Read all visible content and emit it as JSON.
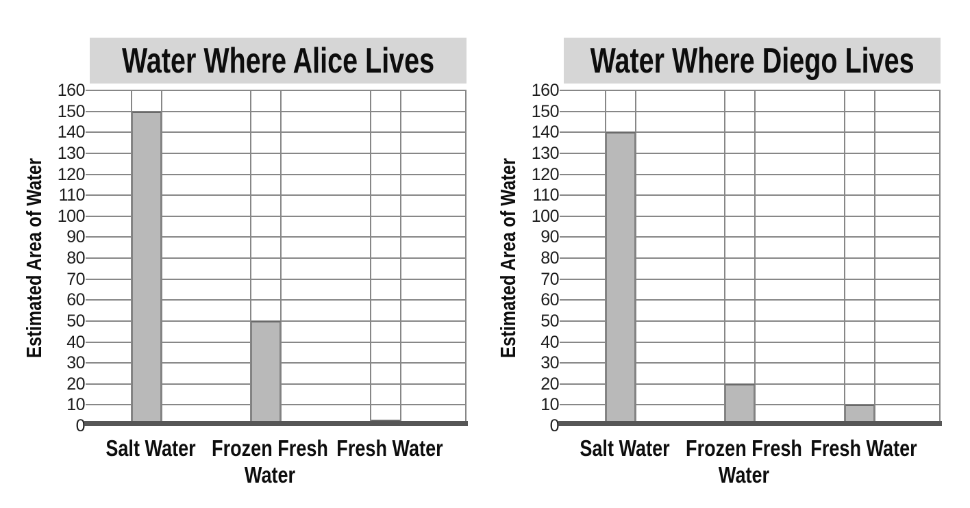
{
  "page": {
    "background": "#ffffff",
    "description_colors": {
      "banner_bg": "#d6d6d6",
      "bar_fill": "#b9b9b9",
      "bar_border": "#828282",
      "gridline": "#878787",
      "baseline": "#565656",
      "text": "#0d0d0d"
    }
  },
  "chart_data": [
    {
      "type": "bar",
      "title": "Water Where Alice Lives",
      "ylabel": "Estimated Area of Water",
      "xlabel": "",
      "categories": [
        "Salt Water",
        "Frozen Fresh\nWater",
        "Fresh Water"
      ],
      "values": [
        150,
        50,
        3
      ],
      "ylim": [
        0,
        160
      ],
      "ytick_step": 10,
      "ytick_labels": [
        "0",
        "10",
        "20",
        "30",
        "40",
        "50",
        "60",
        "70",
        "80",
        "90",
        "100",
        "110",
        "120",
        "130",
        "140",
        "150",
        "160"
      ],
      "grid": true,
      "legend": "none"
    },
    {
      "type": "bar",
      "title": "Water Where Diego Lives",
      "ylabel": "Estimated Area of Water",
      "xlabel": "",
      "categories": [
        "Salt Water",
        "Frozen Fresh\nWater",
        "Fresh Water"
      ],
      "values": [
        140,
        20,
        10
      ],
      "ylim": [
        0,
        160
      ],
      "ytick_step": 10,
      "ytick_labels": [
        "0",
        "10",
        "20",
        "30",
        "40",
        "50",
        "60",
        "70",
        "80",
        "90",
        "100",
        "110",
        "120",
        "130",
        "140",
        "150",
        "160"
      ],
      "grid": true,
      "legend": "none"
    }
  ]
}
